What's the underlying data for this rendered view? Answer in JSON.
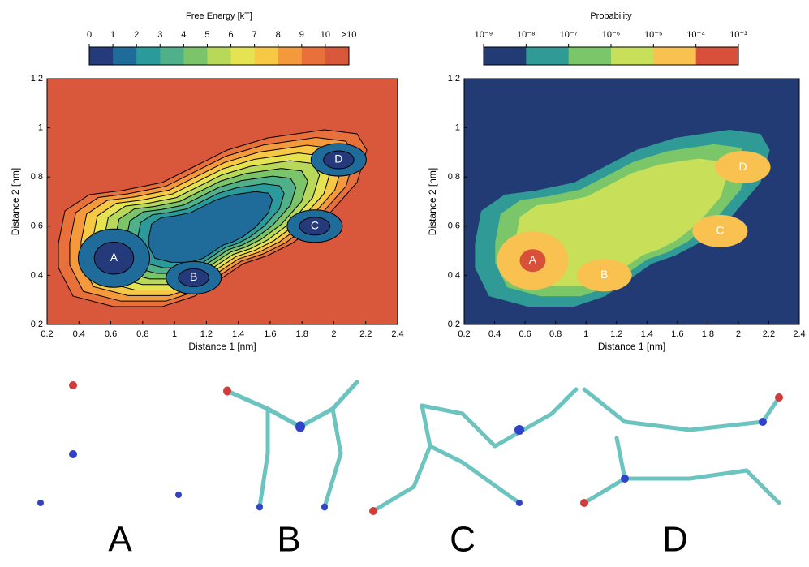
{
  "chart_data": [
    {
      "type": "contour",
      "xlabel": "Distance 1 [nm]",
      "ylabel": "Distance 2 [nm]",
      "xlim": [
        0.2,
        2.4
      ],
      "xticks": [
        0.2,
        0.4,
        0.6,
        0.8,
        1,
        1.2,
        1.4,
        1.6,
        1.8,
        2,
        2.2,
        2.4
      ],
      "ylim": [
        0.2,
        1.2
      ],
      "yticks": [
        0.2,
        0.4,
        0.6,
        0.8,
        1,
        1.2
      ],
      "contour_lines": true,
      "colorbar": {
        "title": "Free Energy [kT]",
        "ticks": [
          0,
          1,
          2,
          3,
          4,
          5,
          6,
          7,
          8,
          9,
          10
        ],
        "overflow_label": ">10",
        "colors": [
          "#253a7a",
          "#1f6b9a",
          "#2a9a9a",
          "#4fb08a",
          "#7cc46a",
          "#b8d85a",
          "#e6e352",
          "#f7c843",
          "#f59a3c",
          "#e8703a",
          "#d9573a"
        ]
      },
      "annotations": [
        {
          "text": "A",
          "x": 0.62,
          "y": 0.47
        },
        {
          "text": "B",
          "x": 1.12,
          "y": 0.39
        },
        {
          "text": "C",
          "x": 1.88,
          "y": 0.6
        },
        {
          "text": "D",
          "x": 2.03,
          "y": 0.87
        }
      ]
    },
    {
      "type": "contour",
      "xlabel": "Distance 1 [nm]",
      "ylabel": "Distance 2 [nm]",
      "xlim": [
        0.2,
        2.4
      ],
      "xticks": [
        0.2,
        0.4,
        0.6,
        0.8,
        1,
        1.2,
        1.4,
        1.6,
        1.8,
        2,
        2.2,
        2.4
      ],
      "ylim": [
        0.2,
        1.2
      ],
      "yticks": [
        0.2,
        0.4,
        0.6,
        0.8,
        1,
        1.2
      ],
      "contour_lines": false,
      "colorbar": {
        "title": "Probability",
        "ticks": [
          {
            "value": 1e-09,
            "label": "10⁻⁹"
          },
          {
            "value": 1e-08,
            "label": "10⁻⁸"
          },
          {
            "value": 1e-07,
            "label": "10⁻⁷"
          },
          {
            "value": 1e-06,
            "label": "10⁻⁶"
          },
          {
            "value": 1e-05,
            "label": "10⁻⁵"
          },
          {
            "value": 0.0001,
            "label": "10⁻⁴"
          },
          {
            "value": 0.001,
            "label": "10⁻³"
          }
        ],
        "colors": [
          "#223b74",
          "#2f9a96",
          "#7cc66a",
          "#c8df5a",
          "#f8c150",
          "#d9503a"
        ]
      },
      "annotations": [
        {
          "text": "A",
          "x": 0.65,
          "y": 0.46
        },
        {
          "text": "B",
          "x": 1.12,
          "y": 0.4
        },
        {
          "text": "C",
          "x": 1.88,
          "y": 0.58
        },
        {
          "text": "D",
          "x": 2.03,
          "y": 0.84
        }
      ]
    }
  ],
  "structure_labels": [
    "A",
    "B",
    "C",
    "D"
  ]
}
